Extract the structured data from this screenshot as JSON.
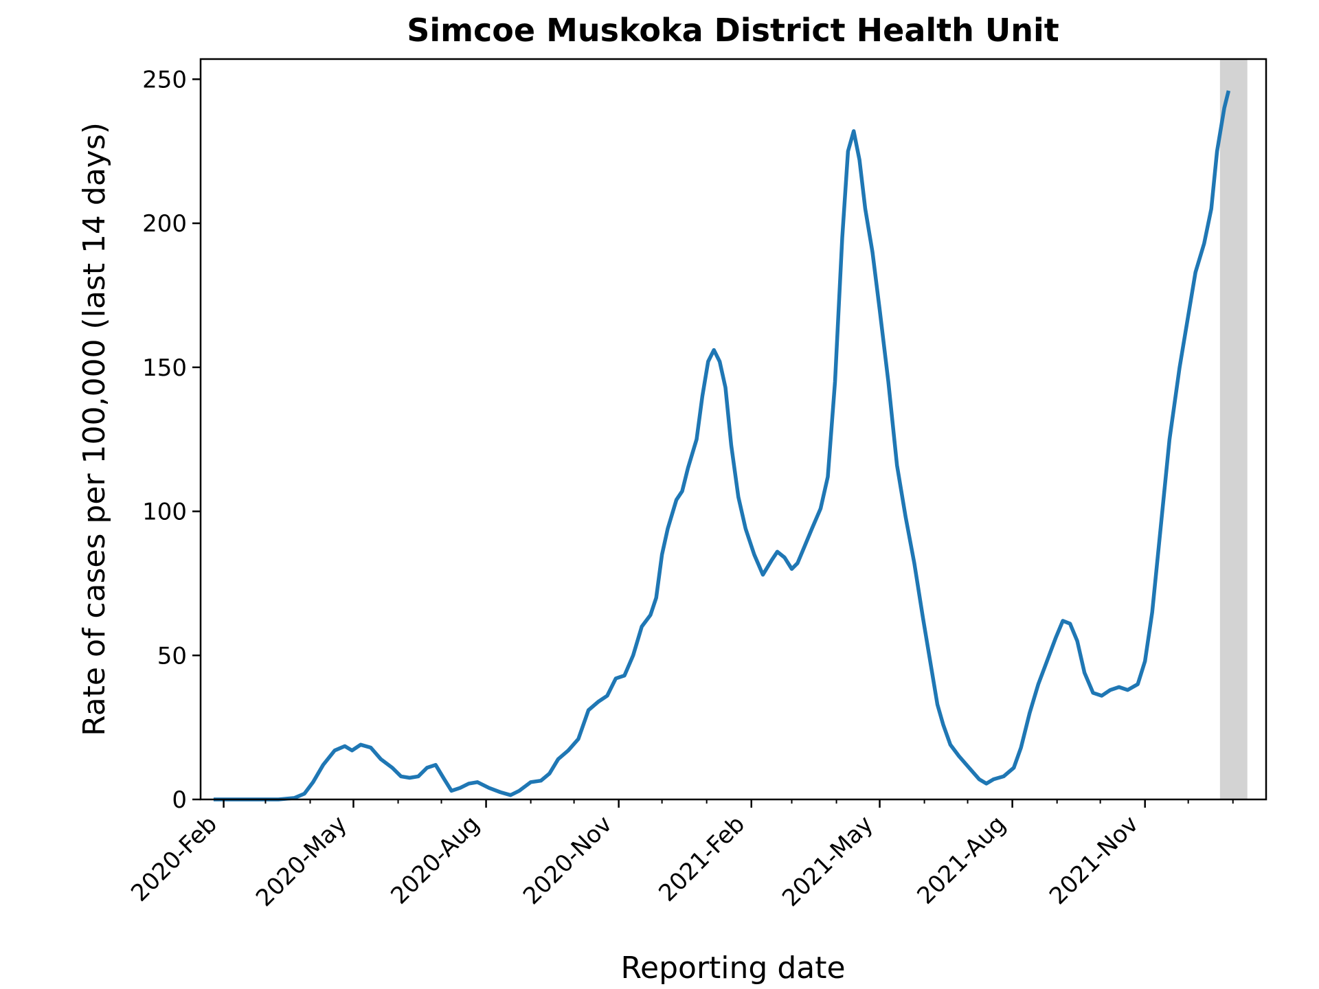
{
  "chart_data": {
    "type": "line",
    "title": "Simcoe Muskoka District Health Unit",
    "xlabel": "Reporting date",
    "ylabel": "Rate of cases per 100,000 (last 14 days)",
    "x_type": "date",
    "xlim": [
      "2020-01-16",
      "2022-01-24"
    ],
    "ylim": [
      0,
      257
    ],
    "y_ticks": [
      0,
      50,
      100,
      150,
      200,
      250
    ],
    "x_ticks": [
      {
        "date": "2020-02-01",
        "label": "2020-Feb"
      },
      {
        "date": "2020-05-01",
        "label": "2020-May"
      },
      {
        "date": "2020-08-01",
        "label": "2020-Aug"
      },
      {
        "date": "2020-11-01",
        "label": "2020-Nov"
      },
      {
        "date": "2021-02-01",
        "label": "2021-Feb"
      },
      {
        "date": "2021-05-01",
        "label": "2021-May"
      },
      {
        "date": "2021-08-01",
        "label": "2021-Aug"
      },
      {
        "date": "2021-11-01",
        "label": "2021-Nov"
      }
    ],
    "x_minor_ticks": [
      "2020-03-01",
      "2020-04-01",
      "2020-06-01",
      "2020-07-01",
      "2020-09-01",
      "2020-10-01",
      "2020-12-01",
      "2021-01-01",
      "2021-03-01",
      "2021-04-01",
      "2021-06-01",
      "2021-07-01",
      "2021-09-01",
      "2021-10-01",
      "2021-12-01",
      "2022-01-01"
    ],
    "shaded_region": {
      "start": "2021-12-23",
      "end": "2022-01-11",
      "color": "#d3d3d3"
    },
    "grid": false,
    "line_color": "#1f77b4",
    "series": [
      {
        "points": [
          [
            "2020-01-25",
            0
          ],
          [
            "2020-02-15",
            0
          ],
          [
            "2020-03-10",
            0
          ],
          [
            "2020-03-21",
            0.5
          ],
          [
            "2020-03-28",
            2
          ],
          [
            "2020-04-03",
            6
          ],
          [
            "2020-04-10",
            12
          ],
          [
            "2020-04-18",
            17
          ],
          [
            "2020-04-25",
            18.5
          ],
          [
            "2020-04-30",
            17
          ],
          [
            "2020-05-06",
            19
          ],
          [
            "2020-05-13",
            18
          ],
          [
            "2020-05-20",
            14
          ],
          [
            "2020-05-28",
            11
          ],
          [
            "2020-06-03",
            8
          ],
          [
            "2020-06-09",
            7.5
          ],
          [
            "2020-06-15",
            8
          ],
          [
            "2020-06-21",
            11
          ],
          [
            "2020-06-27",
            12
          ],
          [
            "2020-07-03",
            7
          ],
          [
            "2020-07-08",
            3
          ],
          [
            "2020-07-14",
            4
          ],
          [
            "2020-07-20",
            5.5
          ],
          [
            "2020-07-26",
            6
          ],
          [
            "2020-08-03",
            4
          ],
          [
            "2020-08-11",
            2.5
          ],
          [
            "2020-08-18",
            1.5
          ],
          [
            "2020-08-24",
            3
          ],
          [
            "2020-09-01",
            6
          ],
          [
            "2020-09-08",
            6.5
          ],
          [
            "2020-09-14",
            9
          ],
          [
            "2020-09-20",
            14
          ],
          [
            "2020-09-27",
            17
          ],
          [
            "2020-10-04",
            21
          ],
          [
            "2020-10-11",
            31
          ],
          [
            "2020-10-18",
            34
          ],
          [
            "2020-10-24",
            36
          ],
          [
            "2020-10-30",
            42
          ],
          [
            "2020-11-05",
            43
          ],
          [
            "2020-11-11",
            50
          ],
          [
            "2020-11-17",
            60
          ],
          [
            "2020-11-23",
            64
          ],
          [
            "2020-11-27",
            70
          ],
          [
            "2020-12-01",
            85
          ],
          [
            "2020-12-05",
            94
          ],
          [
            "2020-12-11",
            104
          ],
          [
            "2020-12-15",
            107
          ],
          [
            "2020-12-19",
            115
          ],
          [
            "2020-12-25",
            125
          ],
          [
            "2020-12-29",
            140
          ],
          [
            "2021-01-02",
            152
          ],
          [
            "2021-01-06",
            156
          ],
          [
            "2021-01-10",
            152
          ],
          [
            "2021-01-14",
            143
          ],
          [
            "2021-01-18",
            123
          ],
          [
            "2021-01-23",
            105
          ],
          [
            "2021-01-28",
            94
          ],
          [
            "2021-02-03",
            85
          ],
          [
            "2021-02-09",
            78
          ],
          [
            "2021-02-15",
            83
          ],
          [
            "2021-02-19",
            86
          ],
          [
            "2021-02-24",
            84
          ],
          [
            "2021-03-01",
            80
          ],
          [
            "2021-03-05",
            82
          ],
          [
            "2021-03-10",
            88
          ],
          [
            "2021-03-15",
            94
          ],
          [
            "2021-03-21",
            101
          ],
          [
            "2021-03-26",
            112
          ],
          [
            "2021-03-31",
            145
          ],
          [
            "2021-04-05",
            195
          ],
          [
            "2021-04-09",
            225
          ],
          [
            "2021-04-13",
            232
          ],
          [
            "2021-04-17",
            222
          ],
          [
            "2021-04-21",
            205
          ],
          [
            "2021-04-26",
            190
          ],
          [
            "2021-05-01",
            170
          ],
          [
            "2021-05-07",
            145
          ],
          [
            "2021-05-13",
            116
          ],
          [
            "2021-05-19",
            98
          ],
          [
            "2021-05-25",
            82
          ],
          [
            "2021-05-31",
            63
          ],
          [
            "2021-06-06",
            45
          ],
          [
            "2021-06-10",
            33
          ],
          [
            "2021-06-14",
            26
          ],
          [
            "2021-06-19",
            19
          ],
          [
            "2021-06-25",
            15
          ],
          [
            "2021-07-02",
            11
          ],
          [
            "2021-07-09",
            7
          ],
          [
            "2021-07-14",
            5.5
          ],
          [
            "2021-07-19",
            7
          ],
          [
            "2021-07-26",
            8
          ],
          [
            "2021-08-02",
            11
          ],
          [
            "2021-08-07",
            18
          ],
          [
            "2021-08-13",
            30
          ],
          [
            "2021-08-19",
            40
          ],
          [
            "2021-08-25",
            48
          ],
          [
            "2021-08-31",
            56
          ],
          [
            "2021-09-05",
            62
          ],
          [
            "2021-09-10",
            61
          ],
          [
            "2021-09-15",
            55
          ],
          [
            "2021-09-20",
            44
          ],
          [
            "2021-09-26",
            37
          ],
          [
            "2021-10-02",
            36
          ],
          [
            "2021-10-08",
            38
          ],
          [
            "2021-10-14",
            39
          ],
          [
            "2021-10-20",
            38
          ],
          [
            "2021-10-27",
            40
          ],
          [
            "2021-11-01",
            48
          ],
          [
            "2021-11-06",
            65
          ],
          [
            "2021-11-12",
            95
          ],
          [
            "2021-11-18",
            125
          ],
          [
            "2021-11-25",
            150
          ],
          [
            "2021-12-01",
            168
          ],
          [
            "2021-12-06",
            183
          ],
          [
            "2021-12-12",
            193
          ],
          [
            "2021-12-17",
            205
          ],
          [
            "2021-12-21",
            225
          ],
          [
            "2021-12-26",
            240
          ],
          [
            "2021-12-29",
            246
          ]
        ]
      }
    ]
  }
}
